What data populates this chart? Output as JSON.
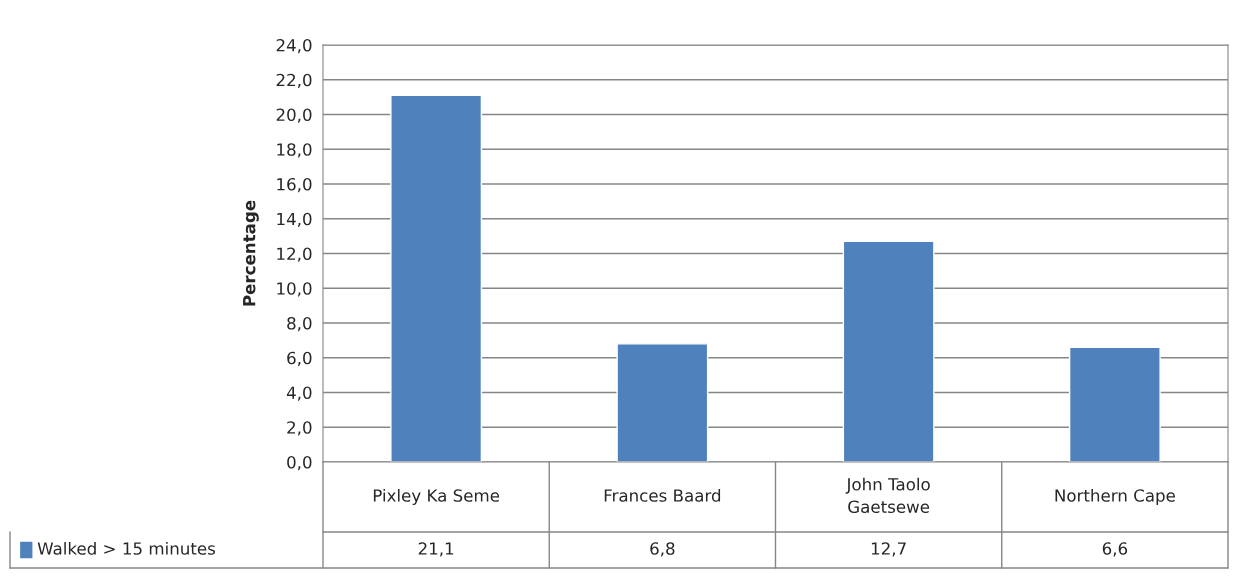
{
  "chart_data": {
    "type": "bar",
    "ylabel": "Percentage",
    "categories": [
      "Pixley Ka Seme",
      "Frances Baard",
      "John Taolo\nGaetsewe",
      "Northern Cape"
    ],
    "series": [
      {
        "name": "Walked > 15 minutes",
        "color": "#4f81bd",
        "values": [
          21.1,
          6.8,
          12.7,
          6.6
        ],
        "value_labels": [
          "21,1",
          "6,8",
          "12,7",
          "6,6"
        ]
      }
    ],
    "ylim": [
      0,
      24
    ],
    "yticks": [
      {
        "value": 0,
        "label": "0,0"
      },
      {
        "value": 2,
        "label": "2,0"
      },
      {
        "value": 4,
        "label": "4,0"
      },
      {
        "value": 6,
        "label": "6,0"
      },
      {
        "value": 8,
        "label": "8,0"
      },
      {
        "value": 10,
        "label": "10,0"
      },
      {
        "value": 12,
        "label": "12,0"
      },
      {
        "value": 14,
        "label": "14,0"
      },
      {
        "value": 16,
        "label": "16,0"
      },
      {
        "value": 18,
        "label": "18,0"
      },
      {
        "value": 20,
        "label": "20,0"
      },
      {
        "value": 22,
        "label": "22,0"
      },
      {
        "value": 24,
        "label": "24,0"
      }
    ],
    "grid": "y",
    "legend": "bottom"
  }
}
